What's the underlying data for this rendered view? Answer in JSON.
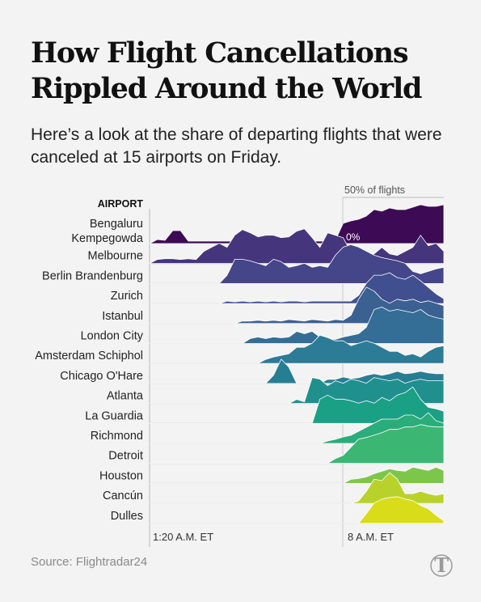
{
  "title": "How Flight Cancellations Rippled Around the World",
  "subtitle": "Here’s a look at the share of departing flights that were canceled at 15 airports on Friday.",
  "source": "Source: Flightradar24",
  "logo_letter": "T",
  "chart_data": {
    "type": "area",
    "column_header": "AIRPORT",
    "scale_label": "50% of flights",
    "zero_label": "0%",
    "x_ticks": [
      "1:20 A.M. ET",
      "8 A.M. ET"
    ],
    "colors": [
      "#3d0a55",
      "#45357d",
      "#45458a",
      "#404f8f",
      "#3b6092",
      "#346d95",
      "#2c7b97",
      "#277e93",
      "#20908f",
      "#1aa085",
      "#2aac7b",
      "#3cb673",
      "#7cc74a",
      "#b9d22b",
      "#d9dc18"
    ],
    "series": [
      {
        "name": "Bengaluru Kempegowda",
        "values": [
          0,
          0.05,
          0.04,
          0.16,
          0.16,
          0.03,
          0.03,
          0.03,
          0.03,
          0.03,
          0.03,
          0.03,
          0.03,
          0.03,
          0.03,
          0.03,
          0.03,
          0.03,
          0.03,
          0.03,
          0.03,
          0.03,
          0.03,
          0.03,
          0.04,
          0.25,
          0.28,
          0.3,
          0.34,
          0.42,
          0.4,
          0.44,
          0.42,
          0.42,
          0.45,
          0.48,
          0.46,
          0.46,
          0.48
        ]
      },
      {
        "name": "Melbourne",
        "values": [
          0,
          0.05,
          0.06,
          0.06,
          0.05,
          0.06,
          0.05,
          0.15,
          0.2,
          0.25,
          0.2,
          0.35,
          0.42,
          0.38,
          0.33,
          0.35,
          0.35,
          0.32,
          0.33,
          0.4,
          0.43,
          0.32,
          0.2,
          0.38,
          0.35,
          0.32,
          0.14,
          0.1,
          0.1,
          0.12,
          0.2,
          0.12,
          0.1,
          0.15,
          0.2,
          0.35,
          0.22,
          0.25,
          0.15
        ]
      },
      {
        "name": "Berlin Brandenburg",
        "values": [
          0,
          0,
          0,
          0,
          0,
          0,
          0,
          0,
          0,
          0,
          0.1,
          0.3,
          0.3,
          0.28,
          0.25,
          0.22,
          0.3,
          0.27,
          0.2,
          0.22,
          0.25,
          0.2,
          0.22,
          0.2,
          0.35,
          0.45,
          0.48,
          0.45,
          0.4,
          0.35,
          0.32,
          0.3,
          0.28,
          0.25,
          0.15,
          0.12,
          0.15,
          0.18,
          0.2
        ]
      },
      {
        "name": "Zurich",
        "values": [
          0,
          0,
          0,
          0,
          0,
          0,
          0,
          0,
          0,
          0,
          0.03,
          0.02,
          0.03,
          0.02,
          0.03,
          0.02,
          0.03,
          0.02,
          0.03,
          0.03,
          0.02,
          0.03,
          0.03,
          0.03,
          0.03,
          0.03,
          0.03,
          0.1,
          0.25,
          0.35,
          0.35,
          0.38,
          0.32,
          0.3,
          0.35,
          0.28,
          0.2,
          0.12,
          0.06
        ]
      },
      {
        "name": "Istanbul",
        "values": [
          0,
          0,
          0,
          0,
          0,
          0,
          0,
          0,
          0,
          0,
          0,
          0,
          0.03,
          0.03,
          0.04,
          0.03,
          0.04,
          0.03,
          0.05,
          0.04,
          0.03,
          0.05,
          0.04,
          0.03,
          0.05,
          0.04,
          0.1,
          0.3,
          0.45,
          0.4,
          0.3,
          0.25,
          0.3,
          0.28,
          0.3,
          0.26,
          0.28,
          0.25,
          0.22
        ]
      },
      {
        "name": "London City",
        "values": [
          0,
          0,
          0,
          0,
          0,
          0,
          0,
          0,
          0,
          0,
          0,
          0,
          0,
          0.06,
          0.08,
          0.06,
          0.08,
          0.07,
          0.08,
          0.15,
          0.12,
          0.15,
          0.08,
          0.06,
          0.05,
          0.08,
          0.1,
          0.12,
          0.2,
          0.42,
          0.45,
          0.4,
          0.42,
          0.4,
          0.38,
          0.42,
          0.35,
          0.32,
          0.3
        ]
      },
      {
        "name": "Amsterdam Schiphol",
        "values": [
          0,
          0,
          0,
          0,
          0,
          0,
          0,
          0,
          0,
          0,
          0,
          0,
          0,
          0,
          0,
          0.05,
          0.08,
          0.1,
          0.12,
          0.2,
          0.2,
          0.25,
          0.35,
          0.32,
          0.28,
          0.28,
          0.22,
          0.25,
          0.28,
          0.25,
          0.2,
          0.15,
          0.15,
          0.1,
          0.12,
          0.08,
          0.15,
          0.2,
          0.22
        ]
      },
      {
        "name": "Chicago O'Hare",
        "values": [
          0,
          0,
          0,
          0,
          0,
          0,
          0,
          0,
          0,
          0,
          0,
          0,
          0,
          0,
          0,
          0,
          0.1,
          0.3,
          0.2,
          0,
          0,
          0,
          0,
          0.05,
          0.05,
          0.08,
          0.06,
          0.07,
          0.1,
          0.12,
          0.1,
          0.12,
          0.15,
          0.12,
          0.13,
          0.15,
          0.13,
          0.12,
          0.12
        ]
      },
      {
        "name": "Atlanta",
        "values": [
          0,
          0,
          0,
          0,
          0,
          0,
          0,
          0,
          0,
          0,
          0,
          0,
          0,
          0,
          0,
          0,
          0,
          0,
          0,
          0.05,
          0.02,
          0.32,
          0.3,
          0.22,
          0.28,
          0.25,
          0.3,
          0.28,
          0.25,
          0.32,
          0.3,
          0.28,
          0.3,
          0.25,
          0.28,
          0.3,
          0.28,
          0.28,
          0.28
        ]
      },
      {
        "name": "La Guardia",
        "values": [
          0,
          0,
          0,
          0,
          0,
          0,
          0,
          0,
          0,
          0,
          0,
          0,
          0,
          0,
          0,
          0,
          0,
          0,
          0,
          0,
          0,
          0,
          0.3,
          0.35,
          0.3,
          0.3,
          0.28,
          0.25,
          0.28,
          0.25,
          0.32,
          0.28,
          0.35,
          0.38,
          0.45,
          0.3,
          0.2,
          0.18,
          0.15
        ]
      },
      {
        "name": "Richmond",
        "values": [
          0,
          0,
          0,
          0,
          0,
          0,
          0,
          0,
          0,
          0,
          0,
          0,
          0,
          0,
          0,
          0,
          0,
          0,
          0,
          0,
          0,
          0,
          0,
          0.03,
          0.05,
          0.08,
          0.1,
          0.15,
          0.2,
          0.25,
          0.3,
          0.3,
          0.3,
          0.35,
          0.35,
          0.3,
          0.38,
          0.28,
          0.25
        ]
      },
      {
        "name": "Detroit",
        "values": [
          0,
          0,
          0,
          0,
          0,
          0,
          0,
          0,
          0,
          0,
          0,
          0,
          0,
          0,
          0,
          0,
          0,
          0,
          0,
          0,
          0,
          0,
          0,
          0,
          0.06,
          0.1,
          0.2,
          0.3,
          0.32,
          0.35,
          0.38,
          0.42,
          0.42,
          0.45,
          0.45,
          0.48,
          0.46,
          0.45,
          0.45
        ]
      },
      {
        "name": "Houston",
        "values": [
          0,
          0,
          0,
          0,
          0,
          0,
          0,
          0,
          0,
          0,
          0,
          0,
          0,
          0,
          0,
          0,
          0,
          0,
          0,
          0,
          0,
          0,
          0,
          0,
          0,
          0,
          0.05,
          0.06,
          0.08,
          0.12,
          0.15,
          0.18,
          0.16,
          0.15,
          0.2,
          0.18,
          0.16,
          0.2,
          0.16
        ]
      },
      {
        "name": "Cancún",
        "values": [
          0,
          0,
          0,
          0,
          0,
          0,
          0,
          0,
          0,
          0,
          0,
          0,
          0,
          0,
          0,
          0,
          0,
          0,
          0,
          0,
          0,
          0,
          0,
          0,
          0,
          0,
          0,
          0.03,
          0.15,
          0.3,
          0.28,
          0.38,
          0.3,
          0.12,
          0.12,
          0.15,
          0.12,
          0.1,
          0.12
        ]
      },
      {
        "name": "Dulles",
        "values": [
          0,
          0,
          0,
          0,
          0,
          0,
          0,
          0,
          0,
          0,
          0,
          0,
          0,
          0,
          0,
          0,
          0,
          0,
          0,
          0,
          0,
          0,
          0,
          0,
          0,
          0,
          0,
          0,
          0.12,
          0.25,
          0.3,
          0.32,
          0.33,
          0.3,
          0.28,
          0.22,
          0.18,
          0.1,
          0.03
        ]
      }
    ]
  }
}
